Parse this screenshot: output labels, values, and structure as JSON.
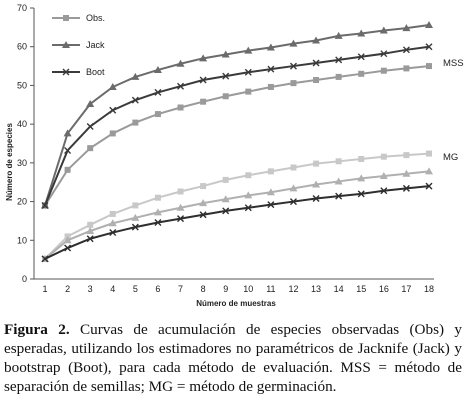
{
  "chart_data": {
    "type": "line",
    "xlabel": "Número de muestras",
    "ylabel": "Número de especies",
    "x": [
      1,
      2,
      3,
      4,
      5,
      6,
      7,
      8,
      9,
      10,
      11,
      12,
      13,
      14,
      15,
      16,
      17,
      18
    ],
    "xlim": [
      1,
      18
    ],
    "ylim": [
      0,
      70
    ],
    "yticks": [
      0,
      10,
      20,
      30,
      40,
      50,
      60,
      70
    ],
    "grid": false,
    "legend_position": "top-left",
    "legend": [
      "Obs.",
      "Jack",
      "Boot"
    ],
    "group_labels": [
      "MSS",
      "MG"
    ],
    "series": [
      {
        "name": "Obs.",
        "group": "MSS",
        "marker": "square",
        "color": "#9a9a9a",
        "values": [
          19,
          28.2,
          33.8,
          37.6,
          40.4,
          42.6,
          44.3,
          45.8,
          47.2,
          48.4,
          49.6,
          50.6,
          51.4,
          52.2,
          53.0,
          53.8,
          54.4,
          55.0
        ]
      },
      {
        "name": "Jack",
        "group": "MSS",
        "marker": "triangle",
        "color": "#6b6b6b",
        "values": [
          19,
          37.6,
          45.2,
          49.6,
          52.2,
          54.0,
          55.6,
          57.0,
          58.0,
          59.0,
          59.8,
          60.8,
          61.6,
          62.8,
          63.4,
          64.2,
          64.8,
          65.6
        ]
      },
      {
        "name": "Boot",
        "group": "MSS",
        "marker": "x",
        "color": "#3a3a3a",
        "values": [
          19,
          33.2,
          39.4,
          43.6,
          46.2,
          48.2,
          49.8,
          51.4,
          52.4,
          53.4,
          54.2,
          55.0,
          55.8,
          56.6,
          57.4,
          58.2,
          59.2,
          60.0
        ]
      },
      {
        "name": "Obs.",
        "group": "MG",
        "marker": "square",
        "color": "#c8c8c8",
        "values": [
          5.2,
          11,
          14,
          16.8,
          19.0,
          21.0,
          22.6,
          24.0,
          25.6,
          26.8,
          27.8,
          28.8,
          29.8,
          30.4,
          31.0,
          31.6,
          32.0,
          32.4
        ]
      },
      {
        "name": "Jack",
        "group": "MG",
        "marker": "triangle",
        "color": "#b0b0b0",
        "values": [
          5.2,
          10.0,
          12.4,
          14.4,
          15.8,
          17.2,
          18.4,
          19.6,
          20.6,
          21.6,
          22.4,
          23.4,
          24.4,
          25.2,
          26.0,
          26.6,
          27.2,
          27.8
        ]
      },
      {
        "name": "Boot",
        "group": "MG",
        "marker": "x",
        "color": "#2e2e2e",
        "values": [
          5.2,
          8.0,
          10.4,
          12.0,
          13.4,
          14.6,
          15.6,
          16.6,
          17.6,
          18.4,
          19.2,
          20.0,
          20.8,
          21.4,
          22.0,
          22.8,
          23.4,
          24.0
        ]
      }
    ]
  },
  "caption": {
    "label": "Figura 2.",
    "text": " Curvas de acumulación de especies observadas (Obs) y esperadas, utilizando los estimadores no paramétricos de Jacknife (Jack) y bootstrap (Boot), para cada método de evaluación. MSS = método de separación de semillas; MG = método de germinación."
  }
}
